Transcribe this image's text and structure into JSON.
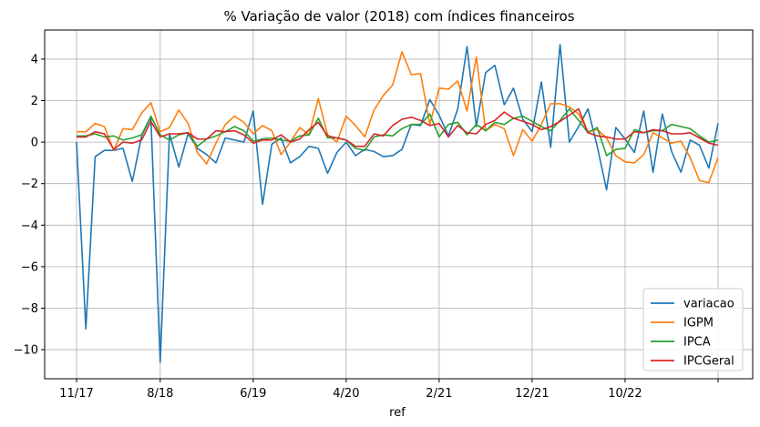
{
  "chart_data": {
    "type": "line",
    "title": "% Variação de valor (2018) com índices financeiros",
    "xlabel": "ref",
    "ylabel": "",
    "ylim": [
      -11.4,
      5.4
    ],
    "yticks": [
      4,
      2,
      0,
      -2,
      -4,
      -6,
      -8,
      -10
    ],
    "x_tick_labels": [
      "11/17",
      "8/18",
      "6/19",
      "4/20",
      "2/21",
      "12/21",
      "10/22",
      ""
    ],
    "x_tick_index": [
      0,
      9,
      19,
      29,
      39,
      49,
      59,
      69
    ],
    "grid": true,
    "legend_position": "lower-right",
    "colors": {
      "variacao": "#1f77b4",
      "IGPM": "#ff7f0e",
      "IPCA": "#2ca02c",
      "IPCGeral": "#d62728"
    },
    "series": [
      {
        "name": "variacao",
        "values": [
          0.0,
          -9.0,
          -0.7,
          -0.4,
          -0.4,
          -0.3,
          -1.9,
          0.3,
          1.2,
          -10.6,
          0.4,
          -1.2,
          0.4,
          -0.3,
          -0.6,
          -1.0,
          0.2,
          0.1,
          0.0,
          1.5,
          -3.0,
          -0.1,
          0.2,
          -1.0,
          -0.7,
          -0.2,
          -0.3,
          -1.5,
          -0.5,
          0.0,
          -0.65,
          -0.35,
          -0.45,
          -0.7,
          -0.65,
          -0.35,
          0.85,
          0.8,
          2.05,
          1.3,
          0.3,
          1.6,
          4.6,
          0.75,
          3.35,
          3.7,
          1.8,
          2.6,
          1.1,
          0.5,
          2.9,
          -0.25,
          4.7,
          0.0,
          0.75,
          1.6,
          -0.2,
          -2.3,
          0.7,
          0.15,
          -0.5,
          1.5,
          -1.45,
          1.35,
          -0.45,
          -1.45,
          0.1,
          -0.15,
          -1.25,
          0.9
        ]
      },
      {
        "name": "IGPM",
        "values": [
          0.5,
          0.5,
          0.9,
          0.75,
          -0.4,
          0.65,
          0.6,
          1.4,
          1.9,
          0.5,
          0.7,
          1.55,
          0.9,
          -0.5,
          -1.05,
          -0.05,
          0.85,
          1.25,
          0.95,
          0.4,
          0.8,
          0.55,
          -0.6,
          0.0,
          0.7,
          0.35,
          2.1,
          0.35,
          0.0,
          1.25,
          0.8,
          0.25,
          1.55,
          2.25,
          2.75,
          4.35,
          3.25,
          3.3,
          0.85,
          2.6,
          2.55,
          2.95,
          1.5,
          4.1,
          0.55,
          0.85,
          0.65,
          -0.65,
          0.6,
          0.05,
          0.85,
          1.85,
          1.85,
          1.7,
          1.35,
          0.5,
          0.6,
          0.2,
          -0.65,
          -0.95,
          -1.0,
          -0.6,
          0.45,
          0.2,
          -0.05,
          0.05,
          -0.75,
          -1.85,
          -1.95,
          -0.75
        ]
      },
      {
        "name": "IPCA",
        "values": [
          0.3,
          0.3,
          0.4,
          0.25,
          0.3,
          0.1,
          0.2,
          0.35,
          1.25,
          0.35,
          0.1,
          0.35,
          0.45,
          -0.2,
          0.15,
          0.3,
          0.5,
          0.75,
          0.55,
          0.05,
          0.15,
          0.2,
          0.1,
          0.05,
          0.3,
          0.35,
          1.15,
          0.2,
          0.2,
          0.1,
          -0.3,
          -0.4,
          0.25,
          0.35,
          0.3,
          0.65,
          0.85,
          0.85,
          1.35,
          0.25,
          0.85,
          0.95,
          0.35,
          0.85,
          0.55,
          0.95,
          0.85,
          1.15,
          1.25,
          1.0,
          0.75,
          0.55,
          1.05,
          1.6,
          1.05,
          0.45,
          0.7,
          -0.65,
          -0.35,
          -0.3,
          0.6,
          0.45,
          0.55,
          0.55,
          0.85,
          0.75,
          0.65,
          0.3,
          0.0,
          0.1
        ]
      },
      {
        "name": "IPCGeral",
        "values": [
          0.25,
          0.25,
          0.5,
          0.4,
          -0.35,
          0.0,
          -0.05,
          0.1,
          1.0,
          0.25,
          0.4,
          0.4,
          0.45,
          0.15,
          0.15,
          0.55,
          0.5,
          0.55,
          0.35,
          -0.05,
          0.1,
          0.1,
          0.35,
          0.0,
          0.15,
          0.6,
          0.95,
          0.3,
          0.2,
          0.1,
          -0.2,
          -0.2,
          0.4,
          0.3,
          0.8,
          1.1,
          1.2,
          1.05,
          0.8,
          0.9,
          0.25,
          0.8,
          0.45,
          0.4,
          0.85,
          1.05,
          1.45,
          1.15,
          1.0,
          0.85,
          0.6,
          0.75,
          1.0,
          1.3,
          1.6,
          0.45,
          0.3,
          0.25,
          0.15,
          0.15,
          0.5,
          0.45,
          0.6,
          0.55,
          0.4,
          0.4,
          0.45,
          0.2,
          -0.05,
          -0.15
        ]
      }
    ]
  }
}
